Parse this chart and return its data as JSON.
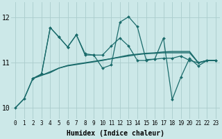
{
  "xlabel": "Humidex (Indice chaleur)",
  "bg_color": "#cce8e8",
  "grid_color": "#aacccc",
  "line_color": "#1a6b6b",
  "ylim": [
    9.75,
    12.35
  ],
  "y_ticks": [
    10,
    11,
    12
  ],
  "x_ticks": [
    0,
    1,
    2,
    3,
    4,
    5,
    6,
    7,
    8,
    9,
    10,
    11,
    12,
    13,
    14,
    15,
    16,
    17,
    18,
    19,
    20,
    21,
    22,
    23
  ],
  "series": [
    {
      "x": [
        0,
        1,
        2,
        3,
        4,
        5,
        6,
        7,
        8,
        9,
        10,
        11,
        12,
        13,
        14,
        15,
        16,
        17,
        18,
        19,
        20,
        21,
        22,
        23
      ],
      "y": [
        10.0,
        10.2,
        10.65,
        10.72,
        10.78,
        10.88,
        10.93,
        10.96,
        10.99,
        11.02,
        11.05,
        11.09,
        11.13,
        11.17,
        11.19,
        11.21,
        11.22,
        11.24,
        11.25,
        11.25,
        11.25,
        11.0,
        11.05,
        11.05
      ],
      "marker": false,
      "dashed": false,
      "lw": 1.0
    },
    {
      "x": [
        2,
        3,
        4,
        5,
        6,
        7,
        8,
        9,
        10,
        11,
        12,
        13,
        14,
        15,
        16,
        17,
        18,
        19,
        20,
        21,
        22,
        23
      ],
      "y": [
        10.65,
        10.72,
        10.8,
        10.88,
        10.94,
        10.97,
        11.0,
        11.03,
        11.06,
        11.09,
        11.12,
        11.15,
        11.18,
        11.2,
        11.21,
        11.22,
        11.22,
        11.22,
        11.22,
        11.0,
        11.05,
        11.05
      ],
      "marker": false,
      "dashed": false,
      "lw": 1.0
    },
    {
      "x": [
        0,
        1,
        2,
        3,
        4,
        5,
        6,
        7,
        8,
        9,
        10,
        11,
        12,
        13,
        14,
        15,
        16,
        17,
        18,
        19,
        20,
        21,
        22,
        23
      ],
      "y": [
        10.0,
        10.2,
        10.65,
        10.75,
        11.78,
        11.57,
        11.35,
        11.62,
        11.2,
        11.17,
        11.17,
        11.37,
        11.55,
        11.37,
        11.05,
        11.05,
        11.08,
        11.1,
        11.1,
        11.15,
        11.05,
        11.0,
        11.05,
        11.05
      ],
      "marker": true,
      "dashed": false,
      "lw": 0.9
    },
    {
      "x": [
        2,
        3,
        4,
        5,
        6,
        7,
        8,
        9,
        10,
        11,
        12,
        13,
        14,
        15,
        16,
        17,
        18,
        19,
        20,
        21,
        22,
        23
      ],
      "y": [
        10.65,
        10.75,
        11.78,
        11.57,
        11.35,
        11.62,
        11.17,
        11.17,
        10.88,
        10.95,
        11.9,
        12.02,
        11.8,
        11.07,
        11.08,
        11.55,
        10.18,
        10.68,
        11.1,
        10.93,
        11.05,
        11.05
      ],
      "marker": true,
      "dashed": false,
      "lw": 0.9
    }
  ]
}
